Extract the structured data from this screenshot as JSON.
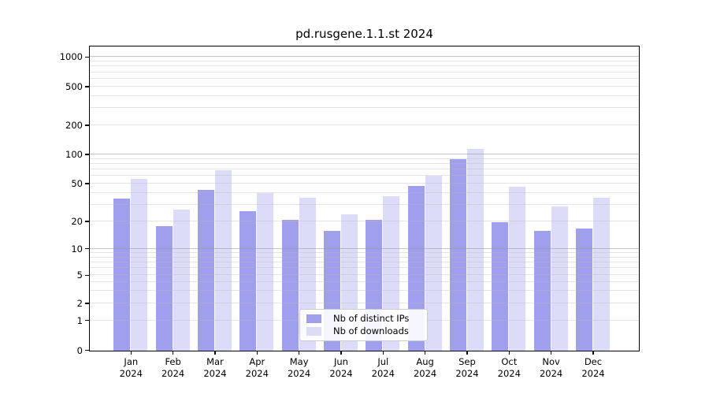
{
  "title": "pd.rusgene.1.1.st 2024",
  "chart_data": {
    "type": "bar",
    "title": "pd.rusgene.1.1.st 2024",
    "categories": [
      {
        "month": "Jan",
        "year": "2024"
      },
      {
        "month": "Feb",
        "year": "2024"
      },
      {
        "month": "Mar",
        "year": "2024"
      },
      {
        "month": "Apr",
        "year": "2024"
      },
      {
        "month": "May",
        "year": "2024"
      },
      {
        "month": "Jun",
        "year": "2024"
      },
      {
        "month": "Jul",
        "year": "2024"
      },
      {
        "month": "Aug",
        "year": "2024"
      },
      {
        "month": "Sep",
        "year": "2024"
      },
      {
        "month": "Oct",
        "year": "2024"
      },
      {
        "month": "Nov",
        "year": "2024"
      },
      {
        "month": "Dec",
        "year": "2024"
      }
    ],
    "series": [
      {
        "name": "Nb of distinct IPs",
        "key": "distinct-ips",
        "color": "#a09fee",
        "values": [
          35,
          18,
          43,
          26,
          21,
          16,
          21,
          48,
          91,
          20,
          16,
          17
        ]
      },
      {
        "name": "Nb of downloads",
        "key": "downloads",
        "color": "#dcdcf9",
        "values": [
          57,
          27,
          70,
          40,
          36,
          24,
          37,
          61,
          115,
          47,
          29,
          36
        ]
      }
    ],
    "yscale": "log-like (0,1,2,5 ... 1000)",
    "y_tick_values": [
      0,
      1,
      2,
      5,
      10,
      20,
      50,
      100,
      200,
      500,
      1000
    ],
    "y_minor_grid_values": [
      3,
      4,
      6,
      7,
      8,
      9,
      30,
      40,
      60,
      70,
      80,
      90,
      300,
      400,
      600,
      700,
      800,
      900
    ],
    "ylim": [
      0,
      1400
    ],
    "grid": "horizontal",
    "legend_position": "lower center"
  },
  "legend": {
    "items": [
      {
        "label": "Nb of distinct IPs"
      },
      {
        "label": "Nb of downloads"
      }
    ]
  },
  "colors": {
    "bar_distinct_ips": "#a09fee",
    "bar_downloads": "#dcdcf9",
    "grid_major": "#c8c8c8",
    "grid_minor": "#e9e9e9",
    "spine": "#000000",
    "background": "#ffffff",
    "text": "#000000"
  }
}
